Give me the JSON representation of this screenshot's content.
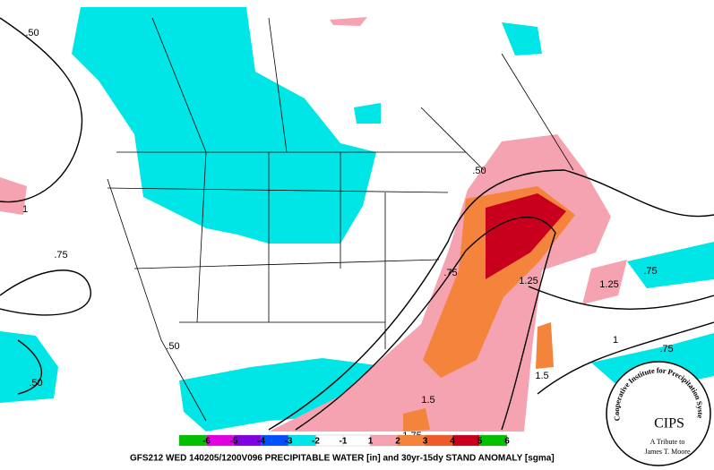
{
  "title": "GFS212  WED 140205/1200V096 PRECIPITABLE WATER [in] and 30yr-15dy STAND ANOMALY [sgma]",
  "colorbar": {
    "labels": [
      "-6",
      "-5",
      "-4",
      "-3",
      "-2",
      "-1",
      "1",
      "2",
      "3",
      "4",
      "5",
      "6"
    ]
  },
  "contour_labels": [
    ".50",
    ".75",
    ".50",
    ".50",
    "1",
    ".50",
    ".75",
    "1.25",
    "1.25",
    ".75",
    "1",
    ".75",
    "1.5",
    "1.5",
    "1.75"
  ],
  "logo": {
    "name": "CIPS",
    "ring": "Cooperative Institute for Precipitation Systems",
    "tribute": "A Tribute to",
    "person": "James T. Moore"
  }
}
